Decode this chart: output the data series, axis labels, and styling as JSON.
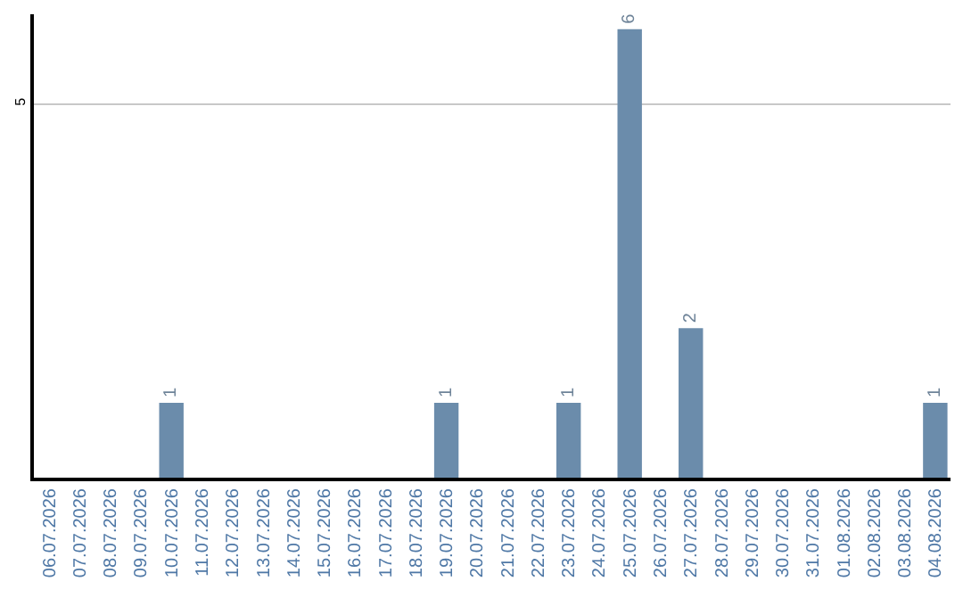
{
  "chart_data": {
    "type": "bar",
    "categories": [
      "06.07.2026",
      "07.07.2026",
      "08.07.2026",
      "09.07.2026",
      "10.07.2026",
      "11.07.2026",
      "12.07.2026",
      "13.07.2026",
      "14.07.2026",
      "15.07.2026",
      "16.07.2026",
      "17.07.2026",
      "18.07.2026",
      "19.07.2026",
      "20.07.2026",
      "21.07.2026",
      "22.07.2026",
      "23.07.2026",
      "24.07.2026",
      "25.07.2026",
      "26.07.2026",
      "27.07.2026",
      "28.07.2026",
      "29.07.2026",
      "30.07.2026",
      "31.07.2026",
      "01.08.2026",
      "02.08.2026",
      "03.08.2026",
      "04.08.2026"
    ],
    "values": [
      0,
      0,
      0,
      0,
      1,
      0,
      0,
      0,
      0,
      0,
      0,
      0,
      0,
      1,
      0,
      0,
      0,
      1,
      0,
      6,
      0,
      2,
      0,
      0,
      0,
      0,
      0,
      0,
      0,
      1
    ],
    "value_labels": [
      null,
      null,
      null,
      null,
      "1",
      null,
      null,
      null,
      null,
      null,
      null,
      null,
      null,
      "1",
      null,
      null,
      null,
      "1",
      null,
      "6",
      null,
      "2",
      null,
      null,
      null,
      null,
      null,
      null,
      null,
      "1"
    ],
    "color": "#6b8cab",
    "ylim": [
      0,
      6.2
    ],
    "yticks": [
      5
    ],
    "grid": "y"
  }
}
